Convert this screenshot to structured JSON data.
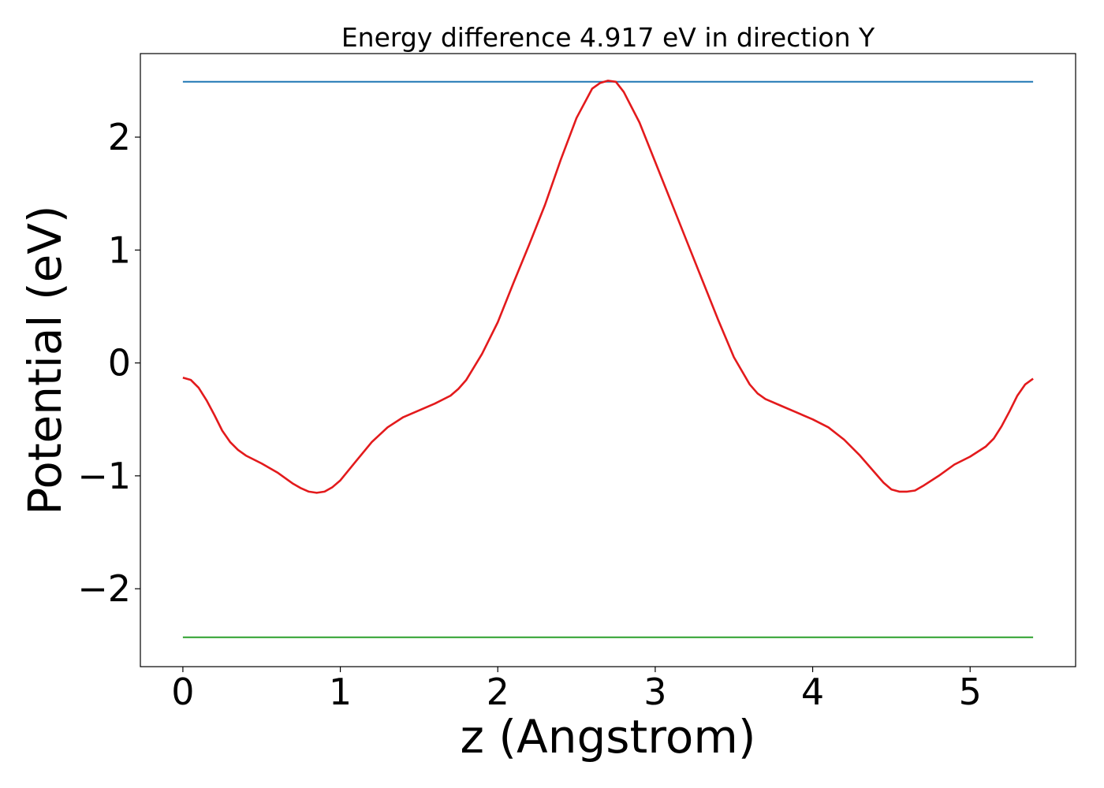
{
  "chart_data": {
    "type": "line",
    "title": "Energy difference 4.917 eV in direction Y",
    "xlabel": "z (Angstrom)",
    "ylabel": "Potential (eV)",
    "xlim": [
      -0.27,
      5.67
    ],
    "ylim": [
      -2.69,
      2.74
    ],
    "xticks": [
      0,
      1,
      2,
      3,
      4,
      5
    ],
    "xtick_labels": [
      "0",
      "1",
      "2",
      "3",
      "4",
      "5"
    ],
    "yticks": [
      -2,
      -1,
      0,
      1,
      2
    ],
    "ytick_labels": [
      "−2",
      "−1",
      "0",
      "1",
      "2"
    ],
    "grid": false,
    "series": [
      {
        "color": "#1f77b4",
        "x": [
          0,
          5.4
        ],
        "y": [
          2.49,
          2.49
        ]
      },
      {
        "color": "#2ca02c",
        "x": [
          0,
          5.4
        ],
        "y": [
          -2.43,
          -2.43
        ]
      },
      {
        "color": "#e31a1c",
        "x": [
          0,
          0.05,
          0.1,
          0.15,
          0.2,
          0.25,
          0.3,
          0.35,
          0.4,
          0.5,
          0.6,
          0.7,
          0.75,
          0.8,
          0.85,
          0.9,
          0.95,
          1.0,
          1.1,
          1.2,
          1.3,
          1.4,
          1.5,
          1.6,
          1.7,
          1.75,
          1.8,
          1.9,
          2.0,
          2.1,
          2.2,
          2.3,
          2.4,
          2.5,
          2.6,
          2.65,
          2.7,
          2.75,
          2.8,
          2.9,
          3.0,
          3.1,
          3.2,
          3.3,
          3.4,
          3.5,
          3.6,
          3.65,
          3.7,
          3.8,
          3.9,
          4.0,
          4.1,
          4.2,
          4.3,
          4.4,
          4.45,
          4.5,
          4.55,
          4.6,
          4.65,
          4.7,
          4.8,
          4.9,
          5.0,
          5.1,
          5.15,
          5.2,
          5.25,
          5.3,
          5.35,
          5.4
        ],
        "y": [
          -0.13,
          -0.15,
          -0.22,
          -0.33,
          -0.46,
          -0.6,
          -0.7,
          -0.77,
          -0.82,
          -0.89,
          -0.97,
          -1.07,
          -1.11,
          -1.14,
          -1.15,
          -1.14,
          -1.1,
          -1.04,
          -0.87,
          -0.7,
          -0.57,
          -0.48,
          -0.42,
          -0.36,
          -0.29,
          -0.23,
          -0.15,
          0.08,
          0.36,
          0.71,
          1.05,
          1.4,
          1.8,
          2.17,
          2.43,
          2.48,
          2.5,
          2.49,
          2.4,
          2.13,
          1.78,
          1.43,
          1.08,
          0.73,
          0.38,
          0.05,
          -0.19,
          -0.27,
          -0.32,
          -0.38,
          -0.44,
          -0.5,
          -0.57,
          -0.68,
          -0.82,
          -0.98,
          -1.06,
          -1.12,
          -1.14,
          -1.14,
          -1.13,
          -1.09,
          -1.0,
          -0.9,
          -0.83,
          -0.74,
          -0.67,
          -0.56,
          -0.43,
          -0.29,
          -0.19,
          -0.14
        ]
      }
    ]
  }
}
